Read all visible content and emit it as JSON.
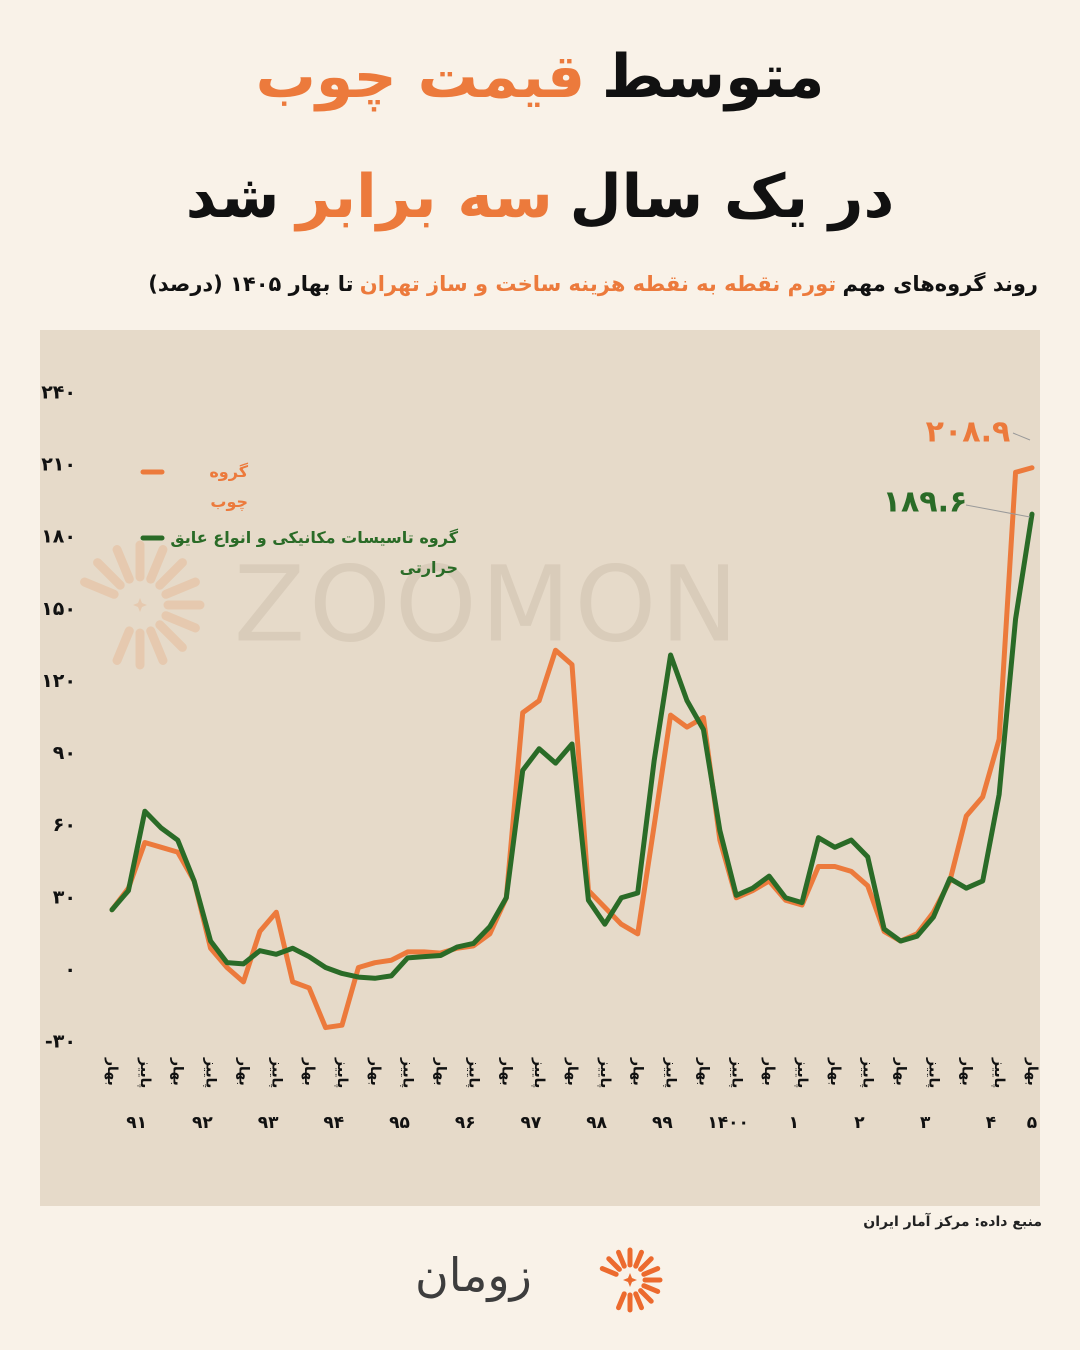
{
  "chart_data": {
    "type": "line",
    "title": [
      [
        {
          "text": "متوسط",
          "color": "#111111"
        },
        {
          "text": "قیمت چوب",
          "color": "#ec7a3c"
        }
      ],
      [
        {
          "text": "در یک سال",
          "color": "#111111"
        },
        {
          "text": "سه برابر",
          "color": "#ec7a3c"
        },
        {
          "text": "شد",
          "color": "#111111"
        }
      ]
    ],
    "subtitle": [
      {
        "text": "روند گروه‌های مهم",
        "color": "#111111"
      },
      {
        "text": "تورم نقطه به نقطه هزینه ساخت و ساز تهران",
        "color": "#ec7a3c"
      },
      {
        "text": "تا بهار ۱۴۰۵ (درصد)",
        "color": "#111111"
      }
    ],
    "categories": [
      "بهار",
      null,
      "پاییز",
      null,
      "بهار",
      null,
      "پاییز",
      null,
      "بهار",
      null,
      "پاییز",
      null,
      "بهار",
      null,
      "پاییز",
      null,
      "بهار",
      null,
      "پاییز",
      null,
      "بهار",
      null,
      "پاییز",
      null,
      "بهار",
      null,
      "پاییز",
      null,
      "بهار",
      null,
      "پاییز",
      null,
      "بهار",
      null,
      "پاییز",
      null,
      "بهار",
      null,
      "پاییز",
      null,
      "بهار",
      null,
      "پاییز",
      null,
      "بهار",
      null,
      "پاییز",
      null,
      "بهار",
      null,
      "پاییز",
      null,
      "بهار",
      null,
      "پاییز",
      null,
      "بهار"
    ],
    "x_groups": [
      "۹۱",
      "۹۲",
      "۹۳",
      "۹۴",
      "۹۵",
      "۹۶",
      "۹۷",
      "۹۸",
      "۹۹",
      "۱۴۰۰",
      "۱",
      "۲",
      "۳",
      "۴",
      "۵"
    ],
    "series": [
      {
        "name": "گروه چوب",
        "color": "#ec7a3c",
        "values": [
          25,
          34,
          53,
          51,
          49,
          37,
          9,
          1,
          -5,
          16,
          24,
          -5,
          -7.5,
          -24,
          -23,
          1,
          3,
          4,
          7.5,
          7.5,
          7,
          9,
          10,
          15,
          30,
          107,
          112,
          133,
          127,
          33,
          26,
          19,
          15,
          60,
          106,
          101,
          105,
          54,
          30,
          33,
          37,
          29,
          27,
          43,
          43,
          41,
          35,
          16,
          12,
          15,
          24,
          37,
          64,
          72,
          96,
          207,
          208.9
        ],
        "value_labels": [
          null,
          null,
          null,
          null,
          null,
          null,
          null,
          null,
          null,
          null,
          null,
          null,
          null,
          null,
          null,
          null,
          null,
          null,
          null,
          null,
          null,
          null,
          null,
          null,
          null,
          null,
          null,
          null,
          null,
          null,
          null,
          null,
          null,
          null,
          null,
          null,
          null,
          null,
          null,
          null,
          null,
          null,
          null,
          null,
          null,
          null,
          null,
          null,
          null,
          null,
          null,
          null,
          null,
          null,
          null,
          null,
          "۲۰۸.۹"
        ]
      },
      {
        "name": "گروه تاسیسات مکانیکی و انواع عایق حرارتی",
        "color": "#2a6b27",
        "values": [
          25,
          33,
          66,
          59,
          54,
          37,
          12,
          3,
          2.5,
          8,
          6.5,
          9,
          5.5,
          1,
          -1.5,
          -3,
          -3.5,
          -2.5,
          5,
          5.5,
          6,
          9.5,
          11,
          18,
          30,
          83,
          92,
          86,
          94,
          29,
          19,
          30,
          32,
          87,
          131,
          112,
          100,
          58,
          31,
          34,
          39,
          30,
          28,
          55,
          51,
          54,
          47,
          17,
          12,
          14,
          22,
          38,
          34,
          37,
          73,
          146,
          189.6
        ],
        "value_labels": [
          null,
          null,
          null,
          null,
          null,
          null,
          null,
          null,
          null,
          null,
          null,
          null,
          null,
          null,
          null,
          null,
          null,
          null,
          null,
          null,
          null,
          null,
          null,
          null,
          null,
          null,
          null,
          null,
          null,
          null,
          null,
          null,
          null,
          null,
          null,
          null,
          null,
          null,
          null,
          null,
          null,
          null,
          null,
          null,
          null,
          null,
          null,
          null,
          null,
          null,
          null,
          null,
          null,
          null,
          null,
          null,
          "۱۸۹.۶"
        ]
      }
    ],
    "ylim": [
      -30,
      240
    ],
    "yticks": [
      {
        "value": 240,
        "label": "۲۴۰"
      },
      {
        "value": 210,
        "label": "۲۱۰"
      },
      {
        "value": 180,
        "label": "۱۸۰"
      },
      {
        "value": 150,
        "label": "۱۵۰"
      },
      {
        "value": 120,
        "label": "۱۲۰"
      },
      {
        "value": 90,
        "label": "۹۰"
      },
      {
        "value": 60,
        "label": "۶۰"
      },
      {
        "value": 30,
        "label": "۳۰"
      },
      {
        "value": 0,
        "label": "۰"
      },
      {
        "value": -30,
        "label": "-۳۰"
      }
    ],
    "grid": false,
    "watermark": "ZOOMON",
    "source": "منبع داده: مرکز آمار ایران"
  },
  "brand": "زومان"
}
